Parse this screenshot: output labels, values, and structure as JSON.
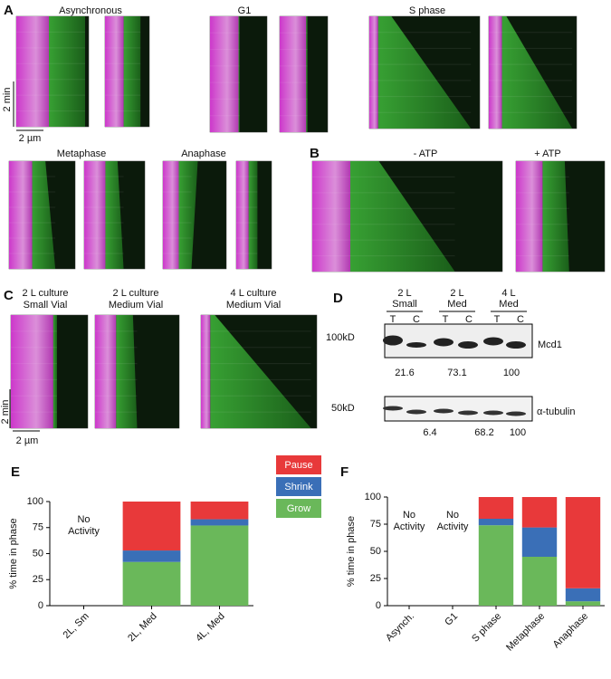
{
  "figure": {
    "panel_labels": [
      "A",
      "B",
      "C",
      "D",
      "E",
      "F"
    ],
    "A": {
      "titles": [
        "Asynchronous",
        "G1",
        "S phase",
        "Metaphase",
        "Anaphase"
      ],
      "time_scale": "2 min",
      "length_scale": "2 µm"
    },
    "B": {
      "titles": [
        "- ATP",
        "+ ATP"
      ]
    },
    "C": {
      "titles": [
        [
          "2 L culture",
          "Small Vial"
        ],
        [
          "2 L culture",
          "Medium Vial"
        ],
        [
          "4 L culture",
          "Medium Vial"
        ]
      ],
      "time_scale": "2 min",
      "length_scale": "2 µm"
    },
    "D": {
      "lanes": [
        [
          "2 L",
          "Small"
        ],
        [
          "2 L",
          "Med"
        ],
        [
          "4 L",
          "Med"
        ]
      ],
      "fractions": [
        "T",
        "C"
      ],
      "blots": [
        {
          "marker": "100kD",
          "protein": "Mcd1",
          "quantities": [
            21.6,
            73.1,
            100
          ]
        },
        {
          "marker": "50kD",
          "protein": "α-tubulin",
          "quantities": [
            6.4,
            68.2,
            100
          ]
        }
      ]
    }
  },
  "chart_data": [
    {
      "type": "bar",
      "stacked": true,
      "ylabel": "% time in phase",
      "categories": [
        "2L, Sm",
        "2L, Med",
        "4L, Med"
      ],
      "series": [
        {
          "name": "Grow",
          "color": "#6ab85a",
          "values": [
            null,
            42,
            77
          ]
        },
        {
          "name": "Shrink",
          "color": "#3a6fb7",
          "values": [
            null,
            11,
            6
          ]
        },
        {
          "name": "Pause",
          "color": "#e8393a",
          "values": [
            null,
            47,
            17
          ]
        }
      ],
      "annotations": [
        [
          "No",
          "Activity"
        ]
      ],
      "ylim": [
        0,
        100
      ],
      "yticks": [
        0,
        25,
        50,
        75,
        100
      ],
      "legend": "right"
    },
    {
      "type": "bar",
      "stacked": true,
      "ylabel": "% time in phase",
      "categories": [
        "Asynch.",
        "G1",
        "S phase",
        "Metaphase",
        "Anaphase"
      ],
      "series": [
        {
          "name": "Grow",
          "color": "#6ab85a",
          "values": [
            null,
            null,
            74,
            45,
            4
          ]
        },
        {
          "name": "Shrink",
          "color": "#3a6fb7",
          "values": [
            null,
            null,
            6,
            27,
            12
          ]
        },
        {
          "name": "Pause",
          "color": "#e8393a",
          "values": [
            null,
            null,
            20,
            28,
            84
          ]
        }
      ],
      "annotations": [
        [
          "No",
          "Activity"
        ],
        [
          "No",
          "Activity"
        ]
      ],
      "ylim": [
        0,
        100
      ],
      "yticks": [
        0,
        25,
        50,
        75,
        100
      ]
    }
  ]
}
